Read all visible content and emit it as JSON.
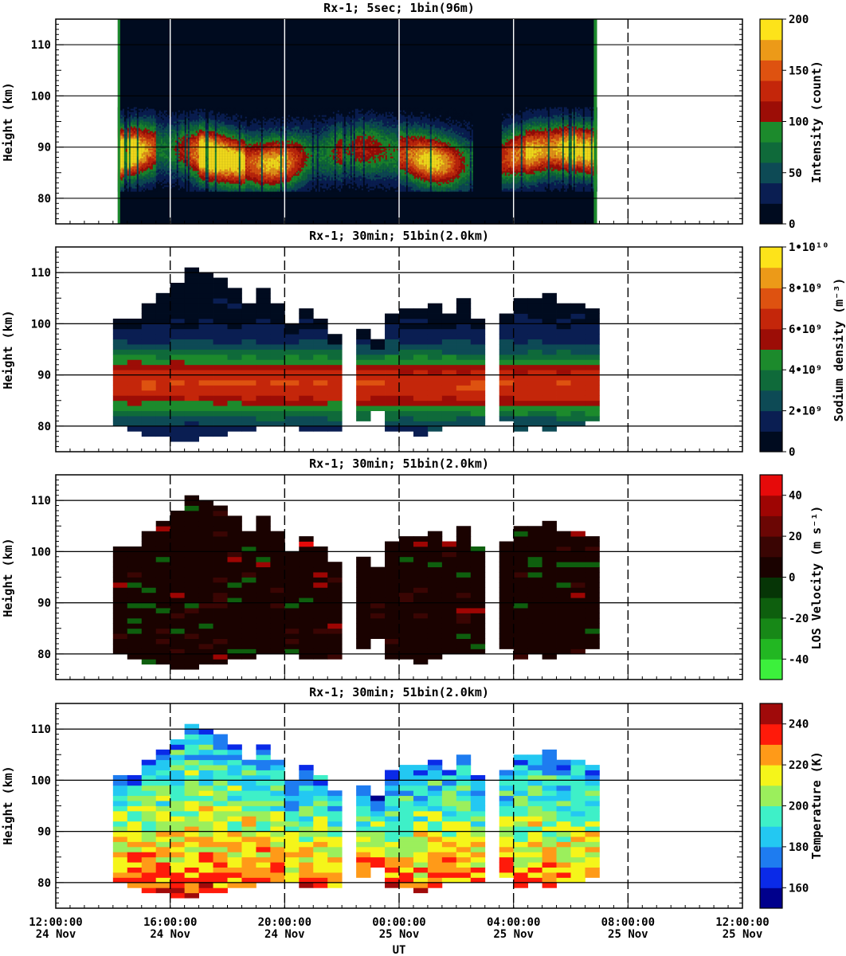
{
  "chart_data": [
    {
      "type": "heatmap",
      "title": "Rx-1;  5sec; 1bin(96m)",
      "ylabel": "Height (km)",
      "ylim": [
        75,
        115
      ],
      "yticks": [
        80,
        90,
        100,
        110
      ],
      "xlim_hours_utc": [
        12,
        36
      ],
      "data_window": {
        "start": "24 Nov 14:10",
        "end": "25 Nov 06:55"
      },
      "gaps": [
        {
          "start": "25 Nov 02:35",
          "end": "25 Nov 03:35"
        }
      ],
      "colorbar": {
        "label": "Intensity (count)",
        "ticks": [
          "0",
          "50",
          "100",
          "150",
          "200"
        ],
        "range": [
          0,
          200
        ],
        "colors": [
          "#000b1f",
          "#0a1e52",
          "#0d4a55",
          "#0f6a3a",
          "#1c8a2c",
          "#9c0d06",
          "#c4260a",
          "#de5210",
          "#ec9a18",
          "#fde31a"
        ]
      },
      "layer": {
        "peak_height_km": 88,
        "top_km": 98,
        "bottom_km": 81,
        "strong_periods": [
          "24 Nov 14:30-15:30",
          "24 Nov 17:00-18:30",
          "25 Nov 04:30-06:00"
        ]
      }
    },
    {
      "type": "heatmap",
      "title": "Rx-1; 30min; 51bin(2.0km)",
      "ylabel": "Height (km)",
      "ylim": [
        75,
        115
      ],
      "yticks": [
        80,
        90,
        100,
        110
      ],
      "colorbar": {
        "label": "Sodium density (m⁻³)",
        "ticks": [
          "0",
          "2•10⁹",
          "4•10⁹",
          "6•10⁹",
          "8•10⁹",
          "1•10¹⁰"
        ],
        "range": [
          0,
          10000000000
        ],
        "colors": [
          "#000b1f",
          "#0a1e52",
          "#0d4a55",
          "#0f6a3a",
          "#1c8a2c",
          "#9c0d06",
          "#c4260a",
          "#de5210",
          "#ec9a18",
          "#fde31a"
        ]
      },
      "peak_density": "6-7•10⁹ m⁻³ near 88 km"
    },
    {
      "type": "heatmap",
      "title": "Rx-1; 30min; 51bin(2.0km)",
      "ylabel": "Height (km)",
      "ylim": [
        75,
        115
      ],
      "yticks": [
        80,
        90,
        100,
        110
      ],
      "colorbar": {
        "label": "LOS Velocity (m s⁻¹)",
        "ticks": [
          "-40",
          "-20",
          "0",
          "20",
          "40"
        ],
        "range": [
          -50,
          50
        ],
        "colors": [
          "#3cf03c",
          "#22b722",
          "#178817",
          "#0e5f0e",
          "#063506",
          "#1a0200",
          "#3a0503",
          "#6b0604",
          "#9e0503",
          "#e60a0a"
        ]
      },
      "typical_velocity": "near 0 m s⁻¹"
    },
    {
      "type": "heatmap",
      "title": "Rx-1; 30min; 51bin(2.0km)",
      "ylabel": "Height (km)",
      "ylim": [
        75,
        115
      ],
      "yticks": [
        80,
        90,
        100,
        110
      ],
      "colorbar": {
        "label": "Temperature (K)",
        "ticks": [
          "160",
          "180",
          "200",
          "220",
          "240"
        ],
        "range": [
          150,
          250
        ],
        "colors": [
          "#00008c",
          "#0a2ae8",
          "#1e7cf0",
          "#23c8f2",
          "#3ef0c8",
          "#9bef5c",
          "#f5f51a",
          "#ff9a18",
          "#ff1a0a",
          "#a00a0a"
        ]
      }
    }
  ],
  "x_axis": {
    "label": "UT",
    "ticks": [
      {
        "time": "12:00:00",
        "date": "24 Nov"
      },
      {
        "time": "16:00:00",
        "date": "24 Nov"
      },
      {
        "time": "20:00:00",
        "date": "24 Nov"
      },
      {
        "time": "00:00:00",
        "date": "25 Nov"
      },
      {
        "time": "04:00:00",
        "date": "25 Nov"
      },
      {
        "time": "08:00:00",
        "date": "25 Nov"
      },
      {
        "time": "12:00:00",
        "date": "25 Nov"
      }
    ]
  },
  "profile_columns": {
    "start_hour_utc": 14,
    "bin_hours": 0.5,
    "tops_km": [
      101,
      101,
      104,
      106,
      108,
      111,
      110,
      109,
      107,
      104,
      107,
      104,
      100,
      103,
      101,
      98,
      0,
      99,
      97,
      102,
      103,
      103,
      104,
      102,
      105,
      101,
      0,
      102,
      105,
      105,
      106,
      104,
      104,
      103
    ],
    "bottoms_km": [
      80,
      79,
      78,
      78,
      77,
      77,
      78,
      78,
      79,
      79,
      80,
      80,
      80,
      79,
      79,
      79,
      0,
      81,
      83,
      79,
      79,
      78,
      79,
      80,
      80,
      80,
      0,
      81,
      79,
      80,
      79,
      80,
      80,
      81
    ]
  }
}
